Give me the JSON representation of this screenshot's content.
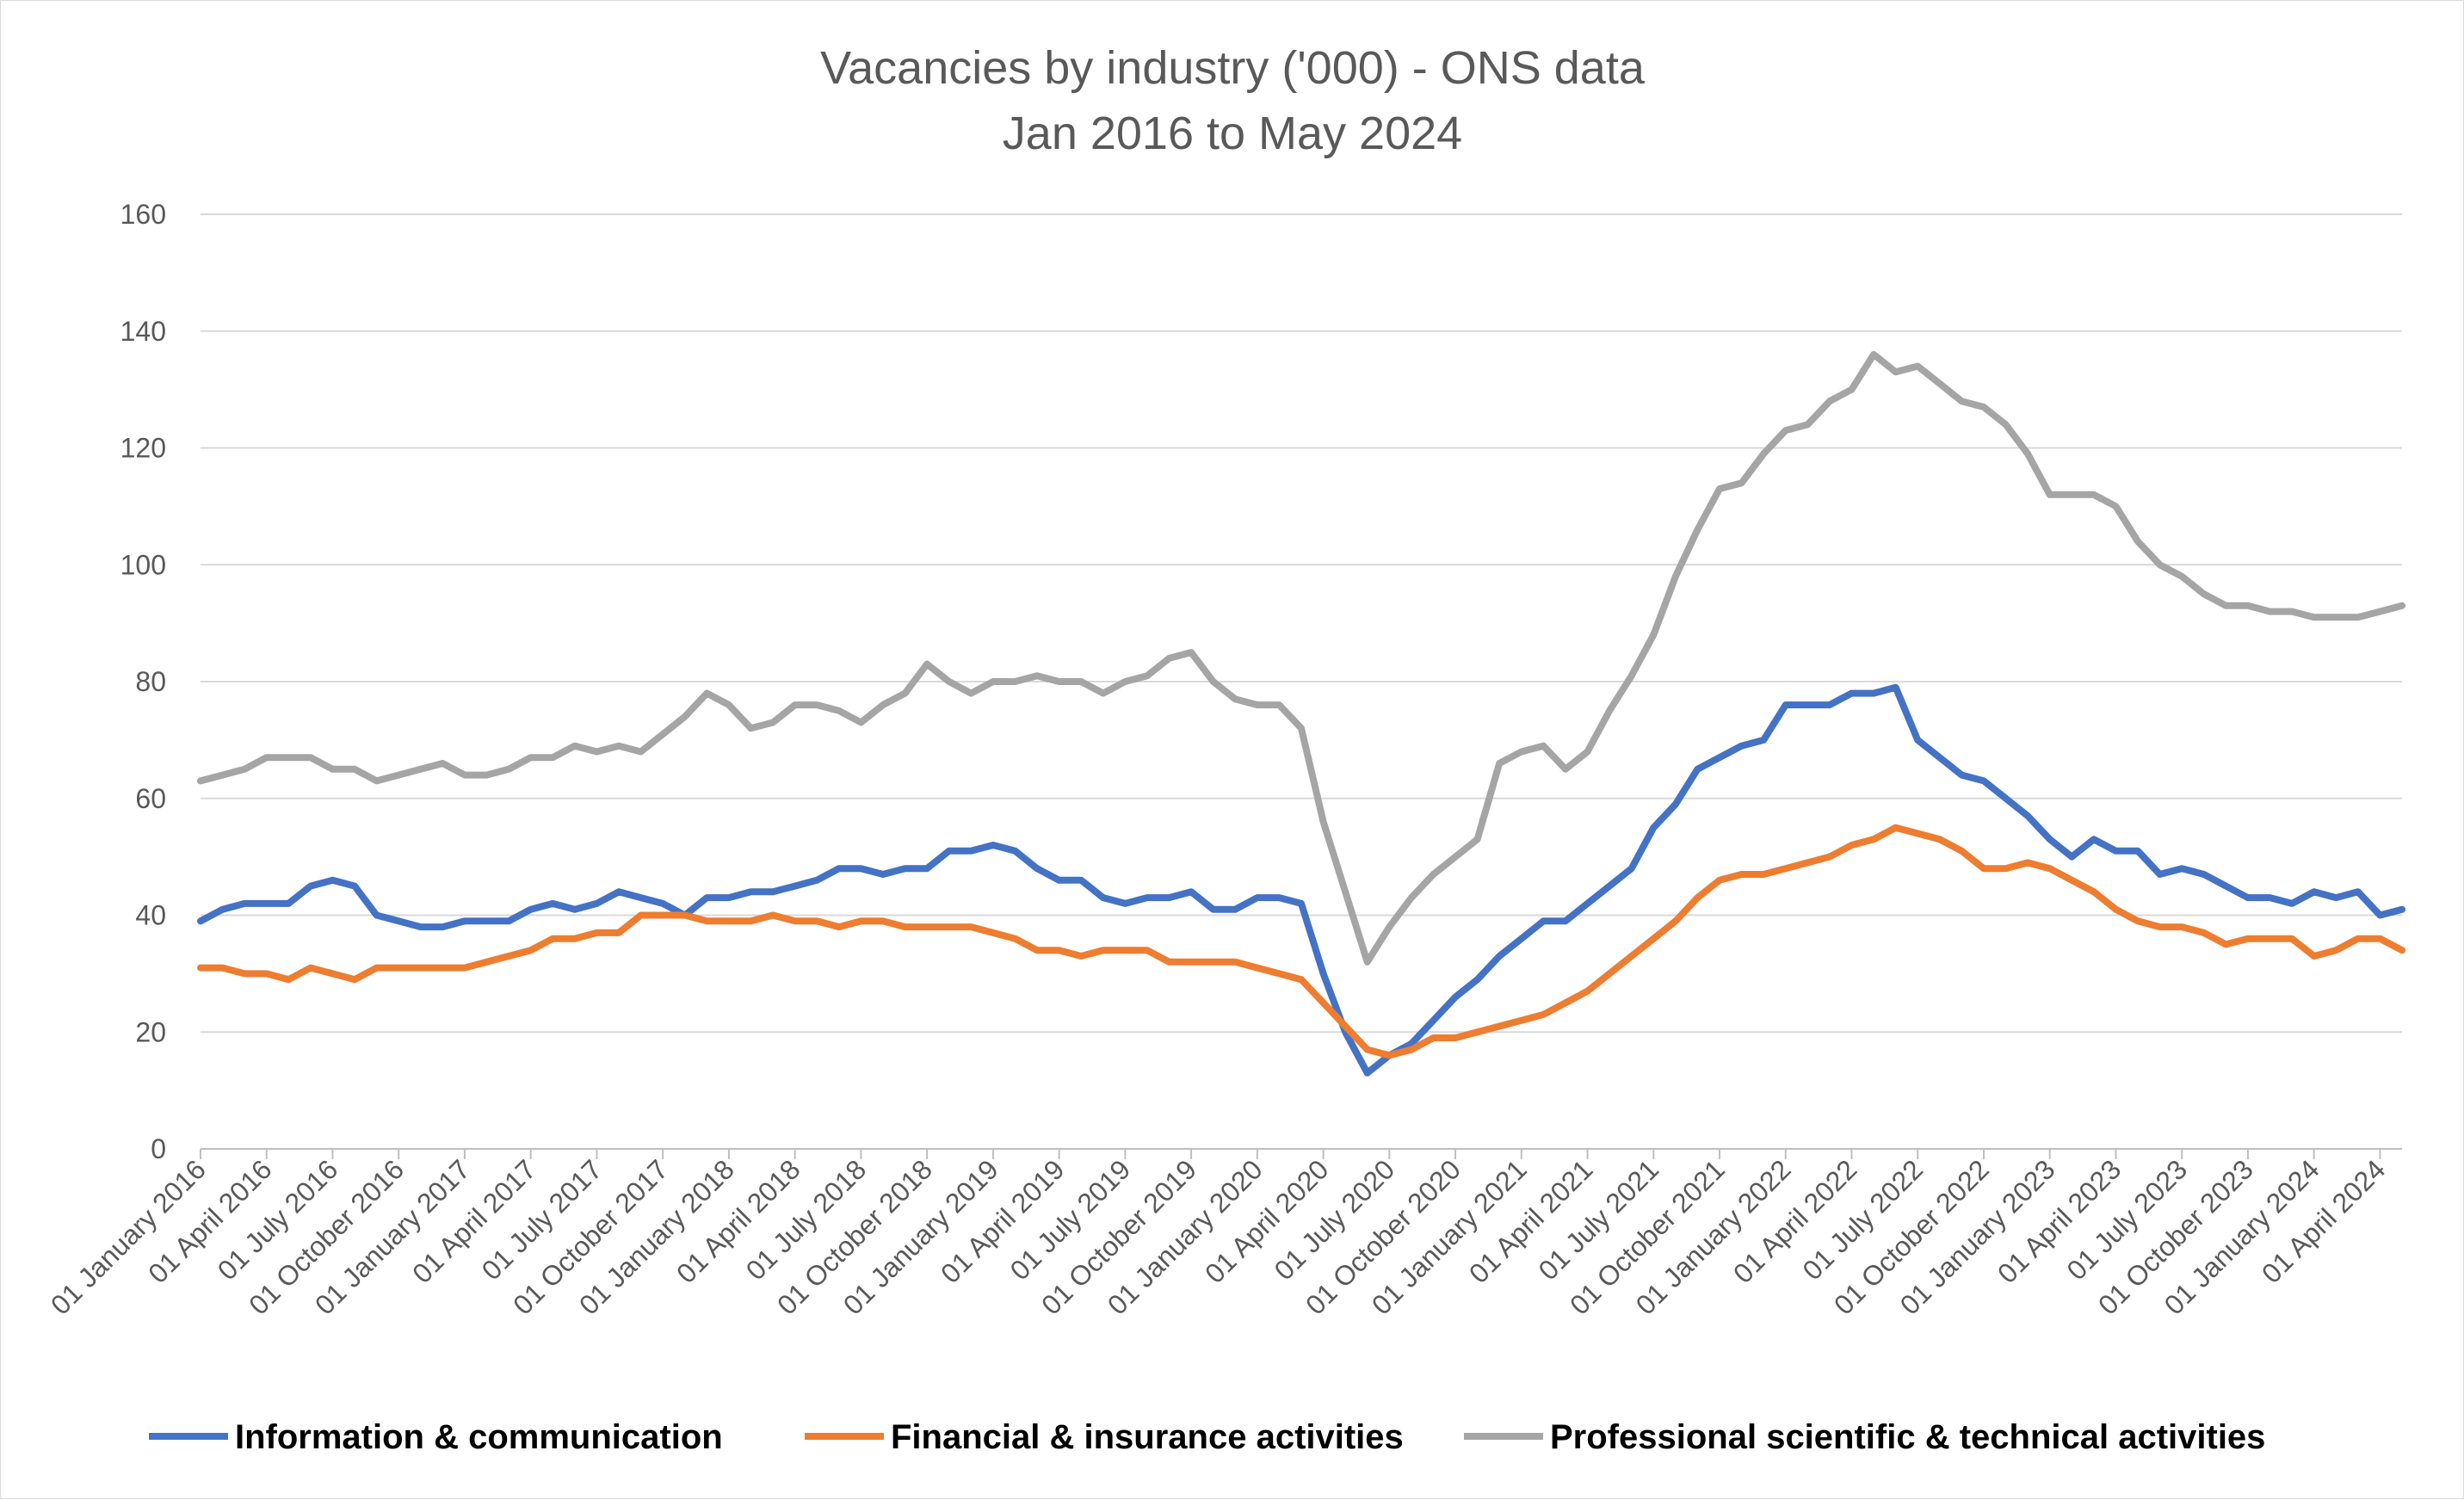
{
  "chart_data": {
    "type": "line",
    "title": [
      "Vacancies by industry ('000) - ONS data",
      "Jan 2016 to May 2024"
    ],
    "ylim": [
      0,
      160
    ],
    "yticks": [
      "0",
      "20",
      "40",
      "60",
      "80",
      "100",
      "120",
      "140",
      "160"
    ],
    "xlabel": "",
    "ylabel": "",
    "grid": true,
    "legend_position": "bottom",
    "xticks": [
      "01 January 2016",
      "01 April 2016",
      "01 July 2016",
      "01 October 2016",
      "01 January 2017",
      "01 April 2017",
      "01 July 2017",
      "01 October 2017",
      "01 January 2018",
      "01 April 2018",
      "01 July 2018",
      "01 October 2018",
      "01 January 2019",
      "01 April 2019",
      "01 July 2019",
      "01 October 2019",
      "01 January 2020",
      "01 April 2020",
      "01 July 2020",
      "01 October 2020",
      "01 January 2021",
      "01 April 2021",
      "01 July 2021",
      "01 October 2021",
      "01 January 2022",
      "01 April 2022",
      "01 July 2022",
      "01 October 2022",
      "01 January 2023",
      "01 April 2023",
      "01 July 2023",
      "01 October 2023",
      "01 January 2024",
      "01 April 2024"
    ],
    "x_start": "Jan 2016",
    "x_end": "May 2024",
    "series": [
      {
        "name": "Information & communication",
        "color": "#4472c4",
        "values": [
          39,
          41,
          42,
          42,
          42,
          45,
          46,
          45,
          40,
          39,
          38,
          38,
          39,
          39,
          39,
          41,
          42,
          41,
          42,
          44,
          43,
          42,
          40,
          43,
          43,
          44,
          44,
          45,
          46,
          48,
          48,
          47,
          48,
          48,
          51,
          51,
          52,
          51,
          48,
          46,
          46,
          43,
          42,
          43,
          43,
          44,
          41,
          41,
          43,
          43,
          42,
          30,
          20,
          13,
          16,
          18,
          22,
          26,
          29,
          33,
          36,
          39,
          39,
          42,
          45,
          48,
          55,
          59,
          65,
          67,
          69,
          70,
          76,
          76,
          76,
          78,
          78,
          79,
          70,
          67,
          64,
          63,
          60,
          57,
          53,
          50,
          53,
          51,
          51,
          47,
          48,
          47,
          45,
          43,
          43,
          42,
          44,
          43,
          44,
          40,
          41
        ]
      },
      {
        "name": "Financial & insurance activities",
        "color": "#ed7d31",
        "values": [
          31,
          31,
          30,
          30,
          29,
          31,
          30,
          29,
          31,
          31,
          31,
          31,
          31,
          32,
          33,
          34,
          36,
          36,
          37,
          37,
          40,
          40,
          40,
          39,
          39,
          39,
          40,
          39,
          39,
          38,
          39,
          39,
          38,
          38,
          38,
          38,
          37,
          36,
          34,
          34,
          33,
          34,
          34,
          34,
          32,
          32,
          32,
          32,
          31,
          30,
          29,
          25,
          21,
          17,
          16,
          17,
          19,
          19,
          20,
          21,
          22,
          23,
          25,
          27,
          30,
          33,
          36,
          39,
          43,
          46,
          47,
          47,
          48,
          49,
          50,
          52,
          53,
          55,
          54,
          53,
          51,
          48,
          48,
          49,
          48,
          46,
          44,
          41,
          39,
          38,
          38,
          37,
          35,
          36,
          36,
          36,
          33,
          34,
          36,
          36,
          34
        ]
      },
      {
        "name": "Professional scientific & technical activities",
        "color": "#a5a5a5",
        "values": [
          63,
          64,
          65,
          67,
          67,
          67,
          65,
          65,
          63,
          64,
          65,
          66,
          64,
          64,
          65,
          67,
          67,
          69,
          68,
          69,
          68,
          71,
          74,
          78,
          76,
          72,
          73,
          76,
          76,
          75,
          73,
          76,
          78,
          83,
          80,
          78,
          80,
          80,
          81,
          80,
          80,
          78,
          80,
          81,
          84,
          85,
          80,
          77,
          76,
          76,
          72,
          56,
          44,
          32,
          38,
          43,
          47,
          50,
          53,
          66,
          68,
          69,
          65,
          68,
          75,
          81,
          88,
          98,
          106,
          113,
          114,
          119,
          123,
          124,
          128,
          130,
          136,
          133,
          134,
          131,
          128,
          127,
          124,
          119,
          112,
          112,
          112,
          110,
          104,
          100,
          98,
          95,
          93,
          93,
          92,
          92,
          91,
          91,
          91,
          92,
          93
        ]
      }
    ]
  }
}
